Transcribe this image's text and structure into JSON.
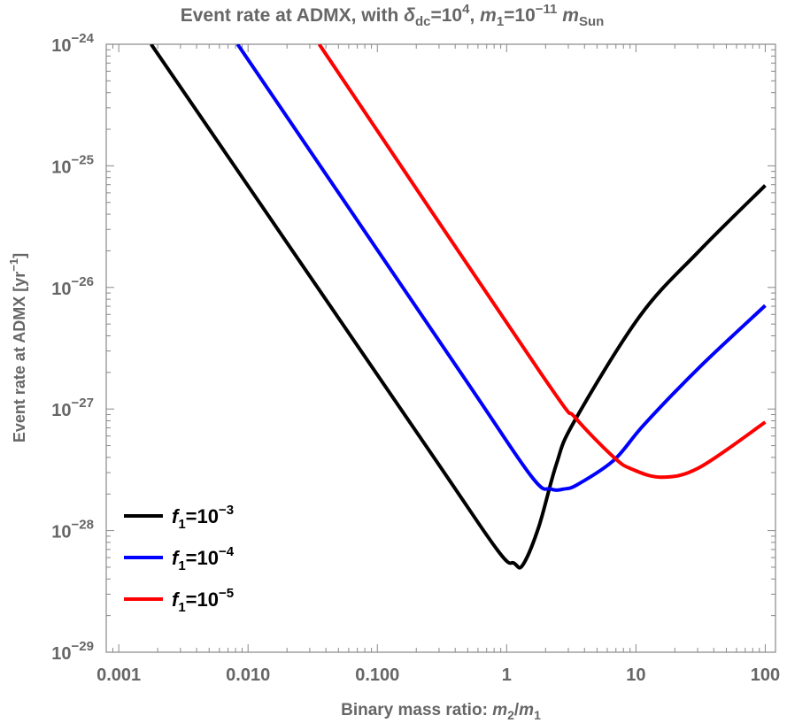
{
  "chart_data": {
    "type": "line",
    "title": {
      "text": "Event rate at ADMX, with ",
      "delta": "δ",
      "delta_sub": "dc",
      "eq1": "=10",
      "exp1": "4",
      "comma": ", ",
      "m": "m",
      "m_sub": "1",
      "eq2": "=10",
      "exp2": "−11",
      "msun": "m",
      "msun_sub": "Sun"
    },
    "xlabel": {
      "text": "Binary mass ratio: ",
      "m2": "m",
      "m2_sub": "2",
      "slash": "/",
      "m1": "m",
      "m1_sub": "1"
    },
    "ylabel": {
      "text": "Event rate at ADMX [yr",
      "exp": "−1",
      "close": "]"
    },
    "x_scale": "log",
    "y_scale": "log",
    "xlim": [
      0.0008,
      120
    ],
    "ylim": [
      1e-29,
      1e-24
    ],
    "x_ticks": [
      {
        "value": 0.001,
        "label": "0.001"
      },
      {
        "value": 0.01,
        "label": "0.010"
      },
      {
        "value": 0.1,
        "label": "0.100"
      },
      {
        "value": 1,
        "label": "1"
      },
      {
        "value": 10,
        "label": "10"
      },
      {
        "value": 100,
        "label": "100"
      }
    ],
    "y_ticks": [
      {
        "value": 1e-24,
        "base": "10",
        "exp": "−24"
      },
      {
        "value": 1e-25,
        "base": "10",
        "exp": "−25"
      },
      {
        "value": 1e-26,
        "base": "10",
        "exp": "−26"
      },
      {
        "value": 1e-27,
        "base": "10",
        "exp": "−27"
      },
      {
        "value": 1e-28,
        "base": "10",
        "exp": "−28"
      },
      {
        "value": 1e-29,
        "base": "10",
        "exp": "−29"
      }
    ],
    "grid": false,
    "legend_position": "bottom-left",
    "series": [
      {
        "name": {
          "var": "f",
          "sub": "1",
          "eq": "=10",
          "exp": "−3"
        },
        "color": "#000000",
        "points": [
          [
            0.00178,
            1e-24
          ],
          [
            0.234,
            5.1e-28
          ],
          [
            0.85,
            6.9e-29
          ],
          [
            1.14,
            5.4e-29
          ],
          [
            1.33,
            5.2e-29
          ],
          [
            1.77,
            1.07e-28
          ],
          [
            2.42,
            3.5e-28
          ],
          [
            3.31,
            7.8e-28
          ],
          [
            10.7,
            5.8e-27
          ],
          [
            30.9,
            2e-26
          ],
          [
            100,
            6.9e-26
          ]
        ]
      },
      {
        "name": {
          "var": "f",
          "sub": "1",
          "eq": "=10",
          "exp": "−4"
        },
        "color": "#0000ff",
        "points": [
          [
            0.0083,
            1e-24
          ],
          [
            0.44,
            2e-27
          ],
          [
            1.55,
            2.8e-28
          ],
          [
            2.19,
            2.2e-28
          ],
          [
            2.79,
            2.2e-28
          ],
          [
            3.55,
            2.4e-28
          ],
          [
            6.76,
            3.8e-28
          ],
          [
            11.5,
            7.4e-28
          ],
          [
            30.9,
            2.2e-27
          ],
          [
            100,
            7.1e-27
          ]
        ]
      },
      {
        "name": {
          "var": "f",
          "sub": "1",
          "eq": "=10",
          "exp": "−5"
        },
        "color": "#ff0000",
        "points": [
          [
            0.0355,
            1e-24
          ],
          [
            1.82,
            2e-27
          ],
          [
            3.39,
            8.5e-28
          ],
          [
            6.76,
            4e-28
          ],
          [
            9.33,
            3.2e-28
          ],
          [
            15.8,
            2.75e-28
          ],
          [
            30.9,
            3.3e-28
          ],
          [
            100,
            7.8e-28
          ]
        ]
      }
    ]
  }
}
